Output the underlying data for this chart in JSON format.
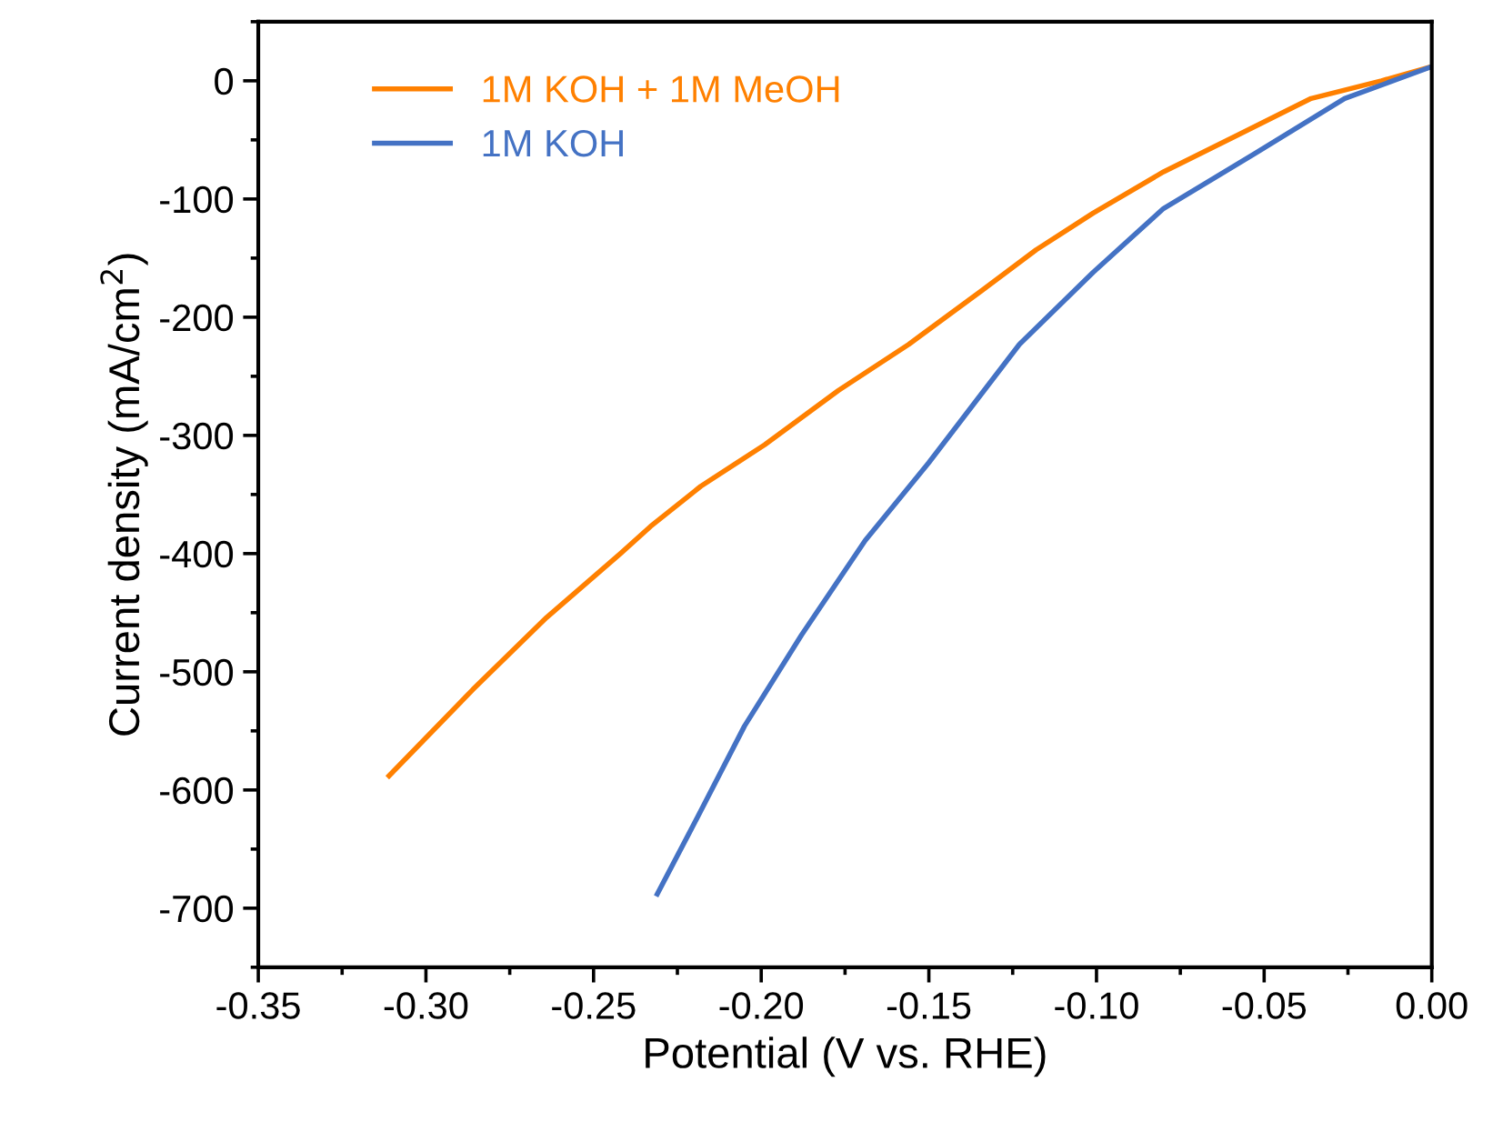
{
  "chart_data": {
    "type": "line",
    "xlabel": "Potential (V vs. RHE)",
    "ylabel": "Current density (mA/cm$^{2}$)",
    "xlim": [
      -0.35,
      0.0
    ],
    "ylim": [
      -750,
      50
    ],
    "xticks": [
      {
        "value": -0.35,
        "label": "-0.35"
      },
      {
        "value": -0.3,
        "label": "-0.30"
      },
      {
        "value": -0.25,
        "label": "-0.25"
      },
      {
        "value": -0.2,
        "label": "-0.20"
      },
      {
        "value": -0.15,
        "label": "-0.15"
      },
      {
        "value": -0.1,
        "label": "-0.10"
      },
      {
        "value": -0.05,
        "label": "-0.05"
      },
      {
        "value": 0.0,
        "label": "0.00"
      }
    ],
    "yticks": [
      0,
      -100,
      -200,
      -300,
      -400,
      -500,
      -600,
      -700
    ],
    "legend": "top left",
    "grid": false,
    "marker": "none",
    "line_style": "solid",
    "series": [
      {
        "name": "1M KOH + 1M MeOH",
        "color": "#ff8000",
        "x": [
          -0.311,
          -0.286,
          -0.264,
          -0.242,
          -0.233,
          -0.218,
          -0.199,
          -0.177,
          -0.156,
          -0.134,
          -0.118,
          -0.101,
          -0.08,
          -0.058,
          -0.036,
          -0.015,
          0.0
        ],
        "values": [
          -588,
          -515,
          -454,
          -400,
          -377,
          -343,
          -308,
          -262,
          -223,
          -177,
          -143,
          -112,
          -77,
          -46,
          -15,
          0,
          12
        ]
      },
      {
        "name": "1M KOH",
        "color": "#4472c4",
        "x": [
          -0.231,
          -0.219,
          -0.205,
          -0.188,
          -0.169,
          -0.15,
          -0.123,
          -0.101,
          -0.08,
          -0.053,
          -0.026,
          0.0
        ],
        "values": [
          -688,
          -623,
          -546,
          -469,
          -389,
          -323,
          -223,
          -162,
          -108,
          -62,
          -15,
          12
        ]
      }
    ]
  }
}
